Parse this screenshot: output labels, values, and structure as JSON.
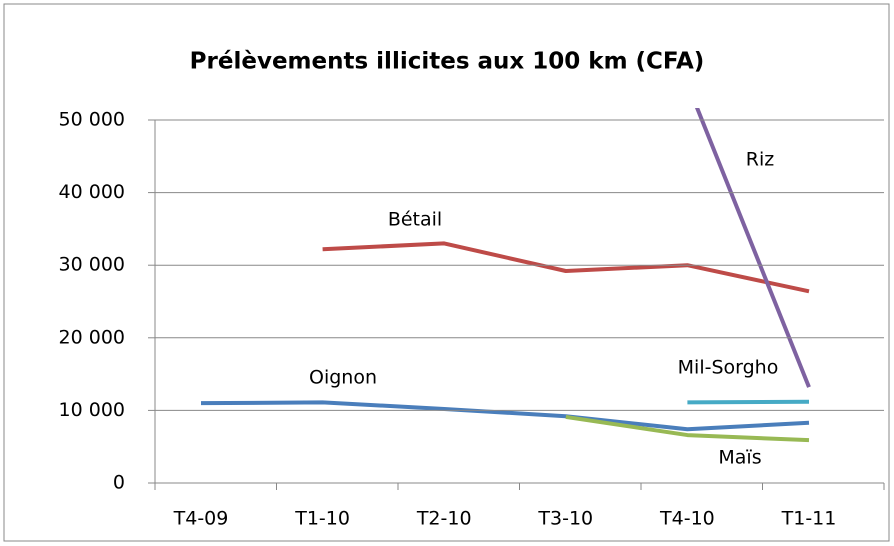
{
  "chart_data": {
    "type": "line",
    "title": "Prélèvements illicites aux 100 km (CFA)",
    "categories": [
      "T4-09",
      "T1-10",
      "T2-10",
      "T3-10",
      "T4-10",
      "T1-11"
    ],
    "series": [
      {
        "name": "Oignon",
        "color": "#4a7ebb",
        "values": [
          11000,
          11100,
          10200,
          9200,
          7400,
          8300
        ]
      },
      {
        "name": "Bétail",
        "color": "#be4b48",
        "values": [
          null,
          32200,
          33000,
          29200,
          30000,
          26400
        ]
      },
      {
        "name": "Riz",
        "color": "#7e62a1",
        "values": [
          null,
          null,
          null,
          null,
          55000,
          13200
        ]
      },
      {
        "name": "Mil-Sorgho",
        "color": "#46aac5",
        "values": [
          null,
          null,
          null,
          null,
          11100,
          11200
        ]
      },
      {
        "name": "Maïs",
        "color": "#98b954",
        "values": [
          null,
          null,
          null,
          9100,
          6600,
          5900
        ]
      }
    ],
    "ylim": [
      0,
      50000
    ],
    "yticks": [
      {
        "value": 0,
        "label": "0"
      },
      {
        "value": 10000,
        "label": "10 000"
      },
      {
        "value": 20000,
        "label": "20 000"
      },
      {
        "value": 30000,
        "label": "30 000"
      },
      {
        "value": 40000,
        "label": "40 000"
      },
      {
        "value": 50000,
        "label": "50 000"
      }
    ],
    "grid": true
  }
}
